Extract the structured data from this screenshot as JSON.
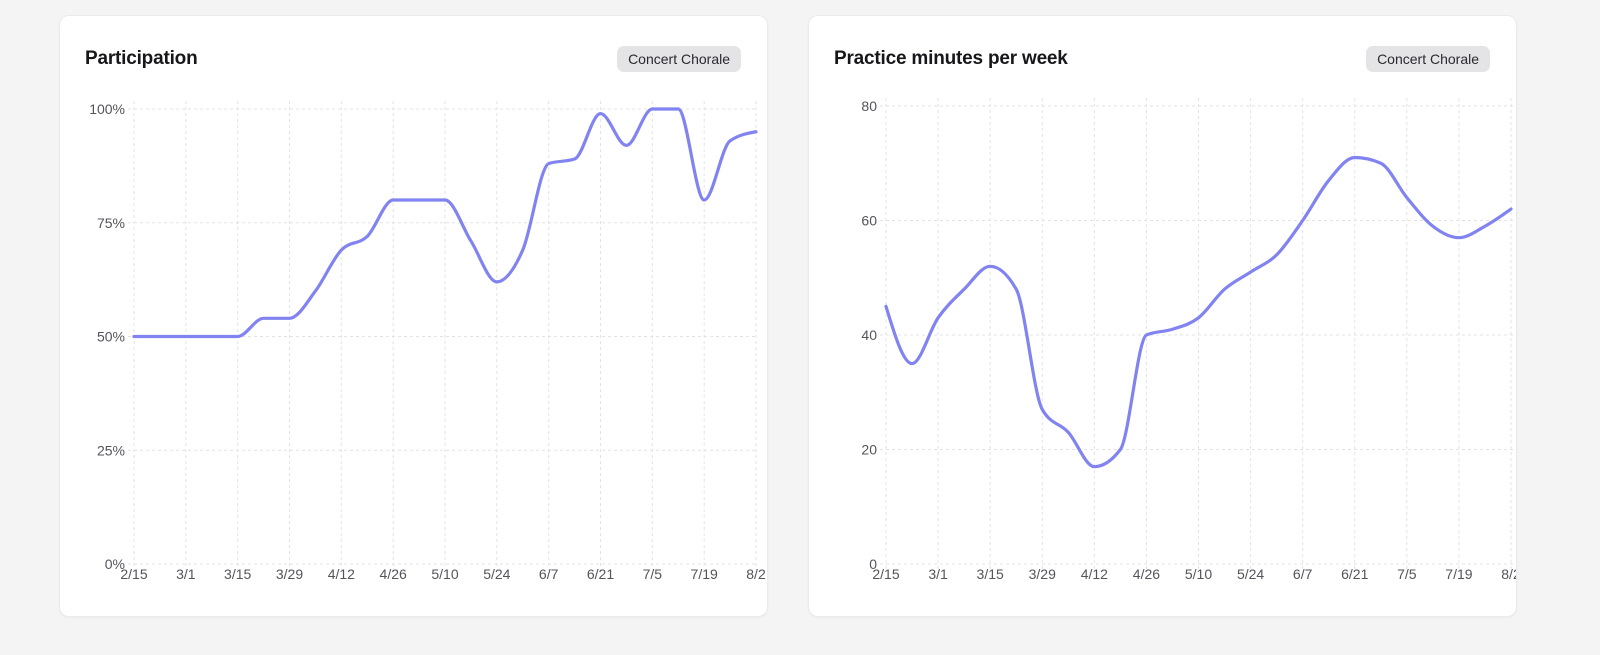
{
  "cards": [
    {
      "title": "Participation",
      "badge": "Concert Chorale"
    },
    {
      "title": "Practice minutes per week",
      "badge": "Concert Chorale"
    }
  ],
  "chart_data": [
    {
      "type": "line",
      "title": "Participation",
      "series_label": "Concert Chorale",
      "x": [
        "2/15",
        "2/22",
        "3/1",
        "3/8",
        "3/15",
        "3/22",
        "3/29",
        "4/5",
        "4/12",
        "4/19",
        "4/26",
        "5/3",
        "5/10",
        "5/17",
        "5/24",
        "5/31",
        "6/7",
        "6/14",
        "6/21",
        "6/28",
        "7/5",
        "7/12",
        "7/19",
        "7/26",
        "8/2"
      ],
      "values": [
        50,
        50,
        50,
        50,
        50,
        54,
        54,
        60,
        69,
        72,
        80,
        80,
        80,
        71,
        62,
        69,
        88,
        89,
        99,
        92,
        100,
        100,
        80,
        93,
        95
      ],
      "x_tick_labels": [
        "2/15",
        "3/1",
        "3/15",
        "3/29",
        "4/12",
        "4/26",
        "5/10",
        "5/24",
        "6/7",
        "6/21",
        "7/5",
        "7/19",
        "8/2"
      ],
      "y_ticks": [
        0,
        25,
        50,
        75,
        100
      ],
      "y_tick_labels": [
        "0%",
        "25%",
        "50%",
        "75%",
        "100%"
      ],
      "ylim": [
        0,
        100
      ],
      "grid": "dashed",
      "legend_position": "none",
      "line_color": "#8184f0"
    },
    {
      "type": "line",
      "title": "Practice minutes per week",
      "series_label": "Concert Chorale",
      "x": [
        "2/15",
        "2/22",
        "3/1",
        "3/8",
        "3/15",
        "3/22",
        "3/29",
        "4/5",
        "4/12",
        "4/19",
        "4/26",
        "5/3",
        "5/10",
        "5/17",
        "5/24",
        "5/31",
        "6/7",
        "6/14",
        "6/21",
        "6/28",
        "7/5",
        "7/12",
        "7/19",
        "7/26",
        "8/2"
      ],
      "values": [
        45,
        35,
        43,
        48,
        52,
        48,
        27,
        23,
        17,
        20,
        40,
        41,
        43,
        48,
        51,
        54,
        60,
        67,
        71,
        70,
        64,
        59,
        57,
        59,
        62
      ],
      "x_tick_labels": [
        "2/15",
        "3/1",
        "3/15",
        "3/29",
        "4/12",
        "4/26",
        "5/10",
        "5/24",
        "6/7",
        "6/21",
        "7/5",
        "7/19",
        "8/2"
      ],
      "y_ticks": [
        0,
        20,
        40,
        60,
        80
      ],
      "y_tick_labels": [
        "0",
        "20",
        "40",
        "60",
        "80"
      ],
      "ylim": [
        0,
        80
      ],
      "grid": "dashed",
      "legend_position": "none",
      "line_color": "#8184f0"
    }
  ],
  "colors": {
    "page_bg": "#f4f4f5",
    "card_bg": "#ffffff",
    "card_border": "#ebebee",
    "title_text": "#17171b",
    "badge_bg": "#e4e4e7",
    "badge_text": "#2a2a2f",
    "grid": "#e3e3e7",
    "tick_text": "#54545c",
    "line": "#8184f0"
  }
}
